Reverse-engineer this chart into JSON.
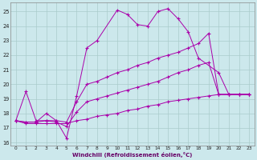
{
  "bg_color": "#cce8ec",
  "grid_color": "#aacccc",
  "line_color": "#aa00aa",
  "xlabel": "Windchill (Refroidissement éolien,°C)",
  "xlim": [
    -0.5,
    23.5
  ],
  "ylim": [
    15.8,
    25.6
  ],
  "yticks": [
    16,
    17,
    18,
    19,
    20,
    21,
    22,
    23,
    24,
    25
  ],
  "xticks": [
    0,
    1,
    2,
    3,
    4,
    5,
    6,
    7,
    8,
    9,
    10,
    11,
    12,
    13,
    14,
    15,
    16,
    17,
    18,
    19,
    20,
    21,
    22,
    23
  ],
  "series": [
    {
      "x": [
        0,
        1,
        2,
        3,
        4,
        5,
        6,
        7,
        8,
        10,
        11,
        12,
        13,
        14,
        15,
        16,
        17,
        18,
        20,
        21,
        22,
        23
      ],
      "y": [
        17.5,
        19.5,
        17.5,
        17.5,
        17.5,
        16.3,
        19.2,
        22.5,
        23.0,
        25.1,
        24.8,
        24.1,
        24.0,
        25.0,
        25.2,
        24.5,
        23.6,
        21.8,
        20.8,
        19.3,
        19.3,
        19.3
      ]
    },
    {
      "x": [
        0,
        1,
        2,
        3,
        4,
        5,
        6,
        7,
        8,
        9,
        10,
        11,
        12,
        13,
        14,
        15,
        16,
        17,
        18,
        19,
        20,
        21,
        22,
        23
      ],
      "y": [
        17.5,
        17.4,
        17.4,
        18.0,
        17.5,
        17.4,
        18.8,
        20.0,
        20.2,
        20.5,
        20.8,
        21.0,
        21.3,
        21.5,
        21.8,
        22.0,
        22.2,
        22.5,
        22.8,
        23.5,
        19.3,
        19.3,
        19.3,
        19.3
      ]
    },
    {
      "x": [
        0,
        1,
        2,
        3,
        4,
        5,
        6,
        7,
        8,
        9,
        10,
        11,
        12,
        13,
        14,
        15,
        16,
        17,
        18,
        19,
        20,
        21,
        22,
        23
      ],
      "y": [
        17.5,
        17.3,
        17.3,
        17.3,
        17.3,
        17.3,
        17.5,
        17.6,
        17.8,
        17.9,
        18.0,
        18.2,
        18.3,
        18.5,
        18.6,
        18.8,
        18.9,
        19.0,
        19.1,
        19.2,
        19.3,
        19.3,
        19.3,
        19.3
      ]
    },
    {
      "x": [
        0,
        1,
        2,
        3,
        4,
        5,
        6,
        7,
        8,
        9,
        10,
        11,
        12,
        13,
        14,
        15,
        16,
        17,
        18,
        19,
        20,
        21,
        22,
        23
      ],
      "y": [
        17.5,
        17.4,
        17.4,
        17.5,
        17.4,
        17.1,
        18.1,
        18.8,
        19.0,
        19.2,
        19.4,
        19.6,
        19.8,
        20.0,
        20.2,
        20.5,
        20.8,
        21.0,
        21.3,
        21.5,
        19.3,
        19.3,
        19.3,
        19.3
      ]
    }
  ]
}
